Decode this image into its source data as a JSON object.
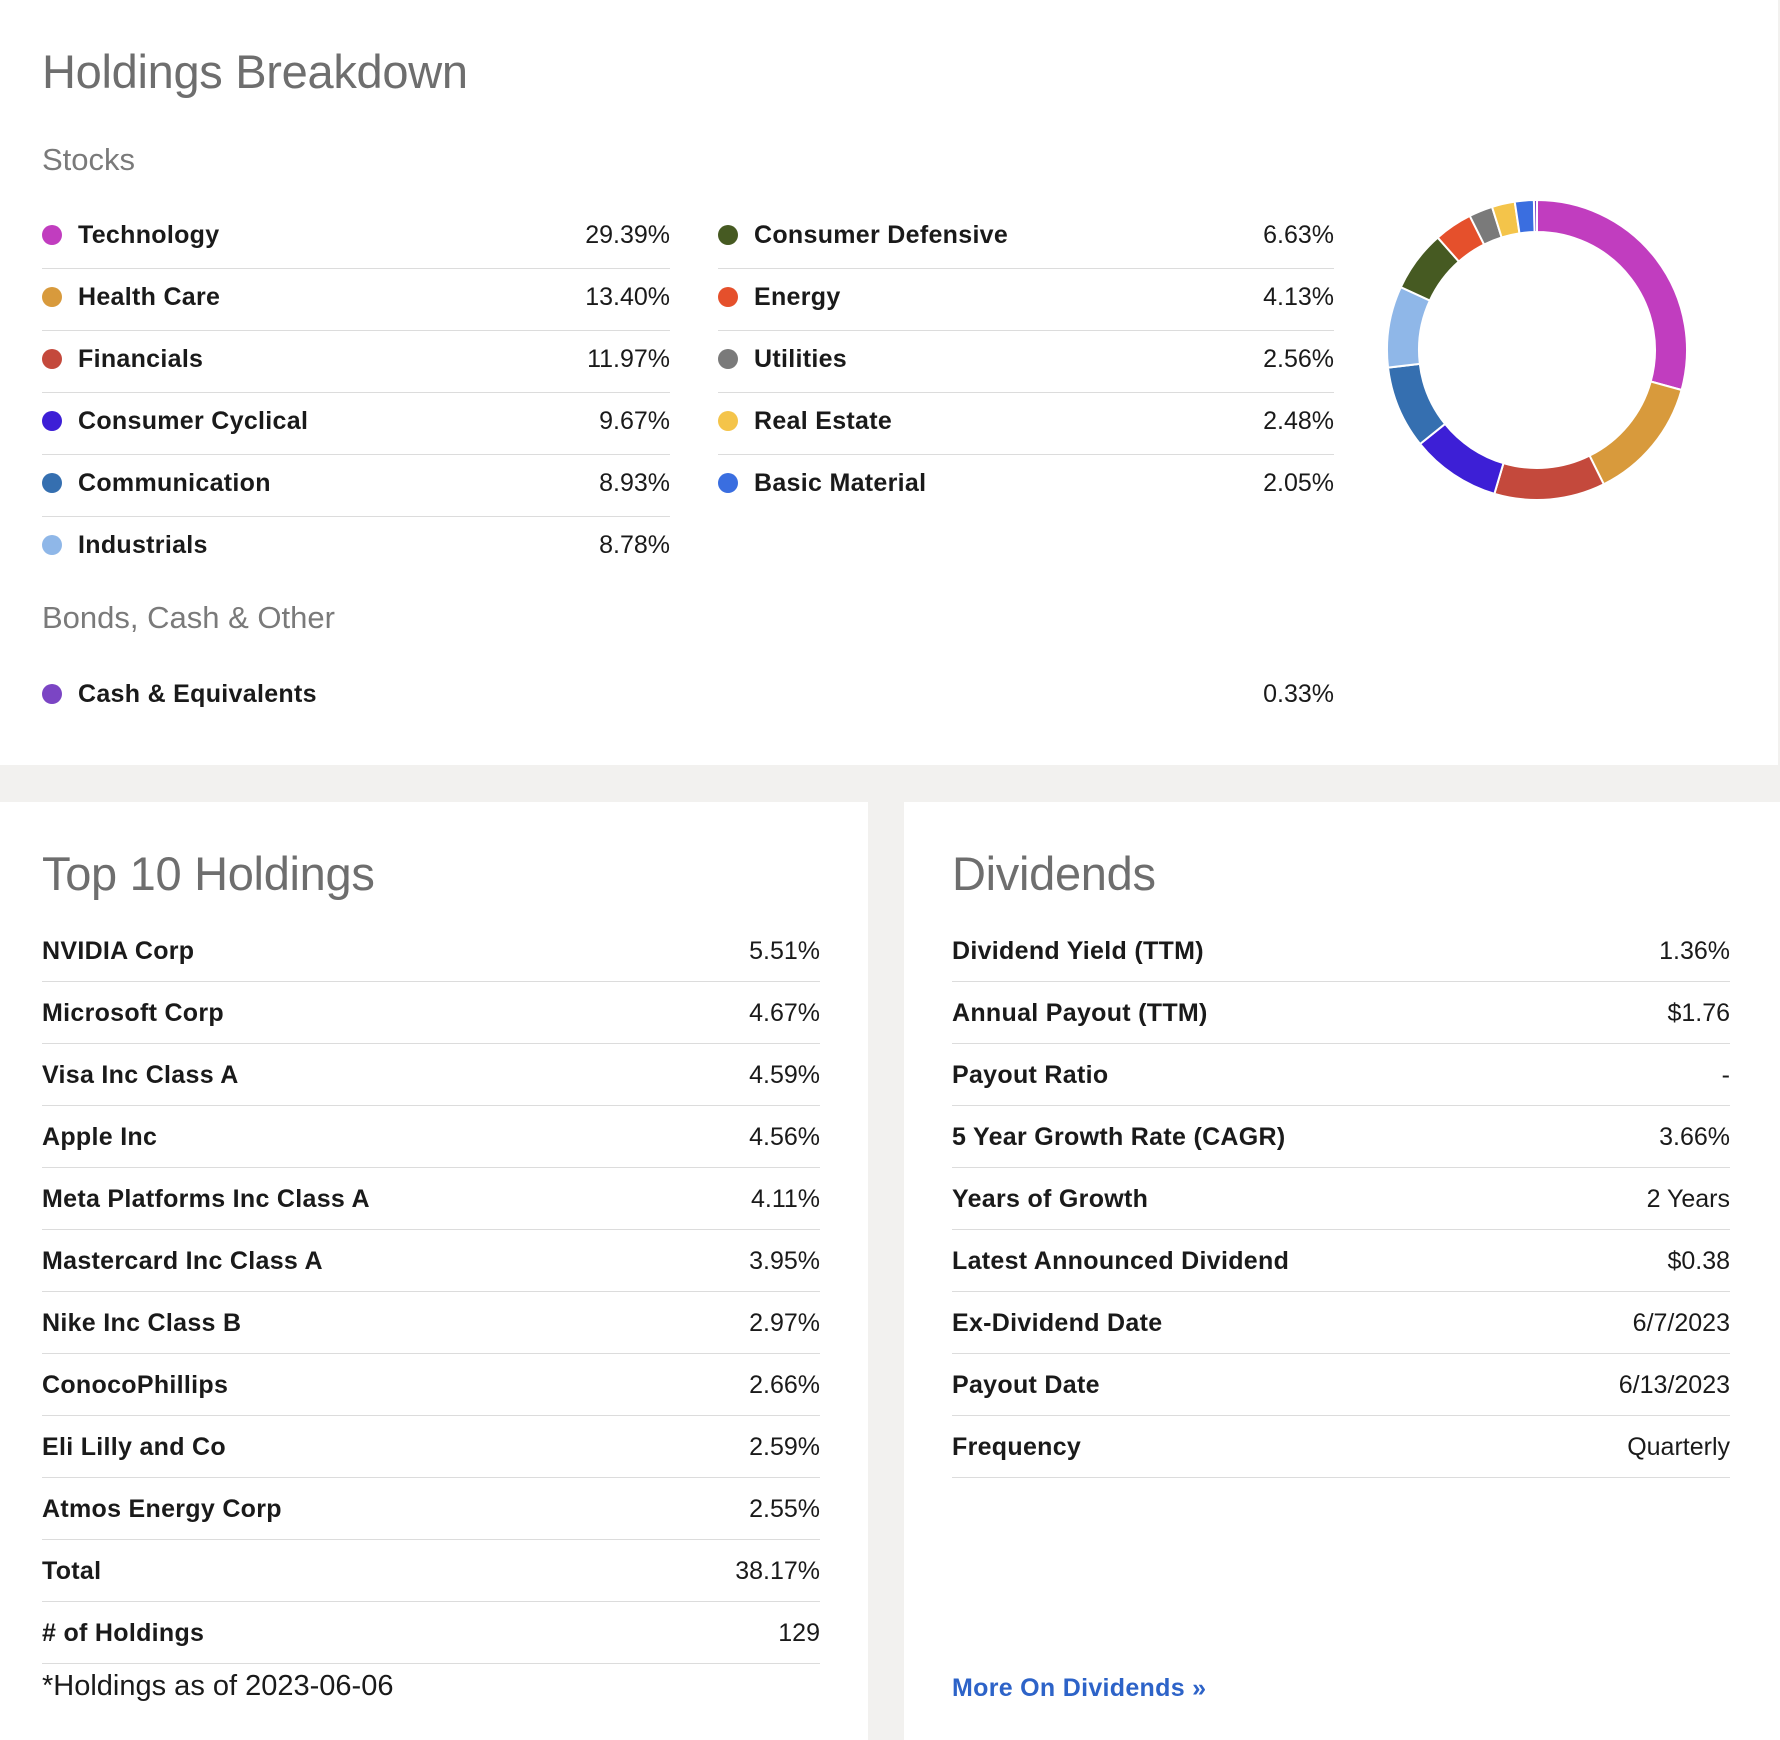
{
  "holdings_breakdown": {
    "title": "Holdings Breakdown",
    "stocks_heading": "Stocks",
    "sectors_left": [
      {
        "name": "Technology",
        "value": "29.39%",
        "color": "#c13dbf"
      },
      {
        "name": "Health Care",
        "value": "13.40%",
        "color": "#d89a3c"
      },
      {
        "name": "Financials",
        "value": "11.97%",
        "color": "#c4493c"
      },
      {
        "name": "Consumer Cyclical",
        "value": "9.67%",
        "color": "#3d1fd6"
      },
      {
        "name": "Communication",
        "value": "8.93%",
        "color": "#356fb0"
      },
      {
        "name": "Industrials",
        "value": "8.78%",
        "color": "#8fb7e8"
      }
    ],
    "sectors_right": [
      {
        "name": "Consumer Defensive",
        "value": "6.63%",
        "color": "#465a22"
      },
      {
        "name": "Energy",
        "value": "4.13%",
        "color": "#e5502c"
      },
      {
        "name": "Utilities",
        "value": "2.56%",
        "color": "#7a7a7a"
      },
      {
        "name": "Real Estate",
        "value": "2.48%",
        "color": "#f4c44a"
      },
      {
        "name": "Basic Material",
        "value": "2.05%",
        "color": "#3a6ee0"
      }
    ],
    "other_heading": "Bonds, Cash & Other",
    "other": [
      {
        "name": "Cash & Equivalents",
        "value": "0.33%",
        "color": "#7b45c4"
      }
    ]
  },
  "chart_data": {
    "type": "pie",
    "categories": [
      "Technology",
      "Health Care",
      "Financials",
      "Consumer Cyclical",
      "Communication",
      "Industrials",
      "Consumer Defensive",
      "Energy",
      "Utilities",
      "Real Estate",
      "Basic Material",
      "Cash & Equivalents"
    ],
    "values": [
      29.39,
      13.4,
      11.97,
      9.67,
      8.93,
      8.78,
      6.63,
      4.13,
      2.56,
      2.48,
      2.05,
      0.33
    ],
    "colors": [
      "#c13dbf",
      "#d89a3c",
      "#c4493c",
      "#3d1fd6",
      "#356fb0",
      "#8fb7e8",
      "#465a22",
      "#e5502c",
      "#7a7a7a",
      "#f4c44a",
      "#3a6ee0",
      "#7b45c4"
    ],
    "donut": true
  },
  "top10": {
    "title": "Top 10 Holdings",
    "rows": [
      {
        "label": "NVIDIA Corp",
        "value": "5.51%"
      },
      {
        "label": "Microsoft Corp",
        "value": "4.67%"
      },
      {
        "label": "Visa Inc Class A",
        "value": "4.59%"
      },
      {
        "label": "Apple Inc",
        "value": "4.56%"
      },
      {
        "label": "Meta Platforms Inc Class A",
        "value": "4.11%"
      },
      {
        "label": "Mastercard Inc Class A",
        "value": "3.95%"
      },
      {
        "label": "Nike Inc Class B",
        "value": "2.97%"
      },
      {
        "label": "ConocoPhillips",
        "value": "2.66%"
      },
      {
        "label": "Eli Lilly and Co",
        "value": "2.59%"
      },
      {
        "label": "Atmos Energy Corp",
        "value": "2.55%"
      },
      {
        "label": "Total",
        "value": "38.17%"
      },
      {
        "label": "# of Holdings",
        "value": "129"
      }
    ],
    "footnote": "*Holdings as of 2023-06-06"
  },
  "dividends": {
    "title": "Dividends",
    "rows": [
      {
        "label": "Dividend Yield (TTM)",
        "value": "1.36%"
      },
      {
        "label": "Annual Payout (TTM)",
        "value": "$1.76"
      },
      {
        "label": "Payout Ratio",
        "value": "-"
      },
      {
        "label": "5 Year Growth Rate (CAGR)",
        "value": "3.66%"
      },
      {
        "label": "Years of Growth",
        "value": "2 Years"
      },
      {
        "label": "Latest Announced Dividend",
        "value": "$0.38"
      },
      {
        "label": "Ex-Dividend Date",
        "value": "6/7/2023"
      },
      {
        "label": "Payout Date",
        "value": "6/13/2023"
      },
      {
        "label": "Frequency",
        "value": "Quarterly"
      }
    ],
    "more_link": "More On Dividends »"
  }
}
